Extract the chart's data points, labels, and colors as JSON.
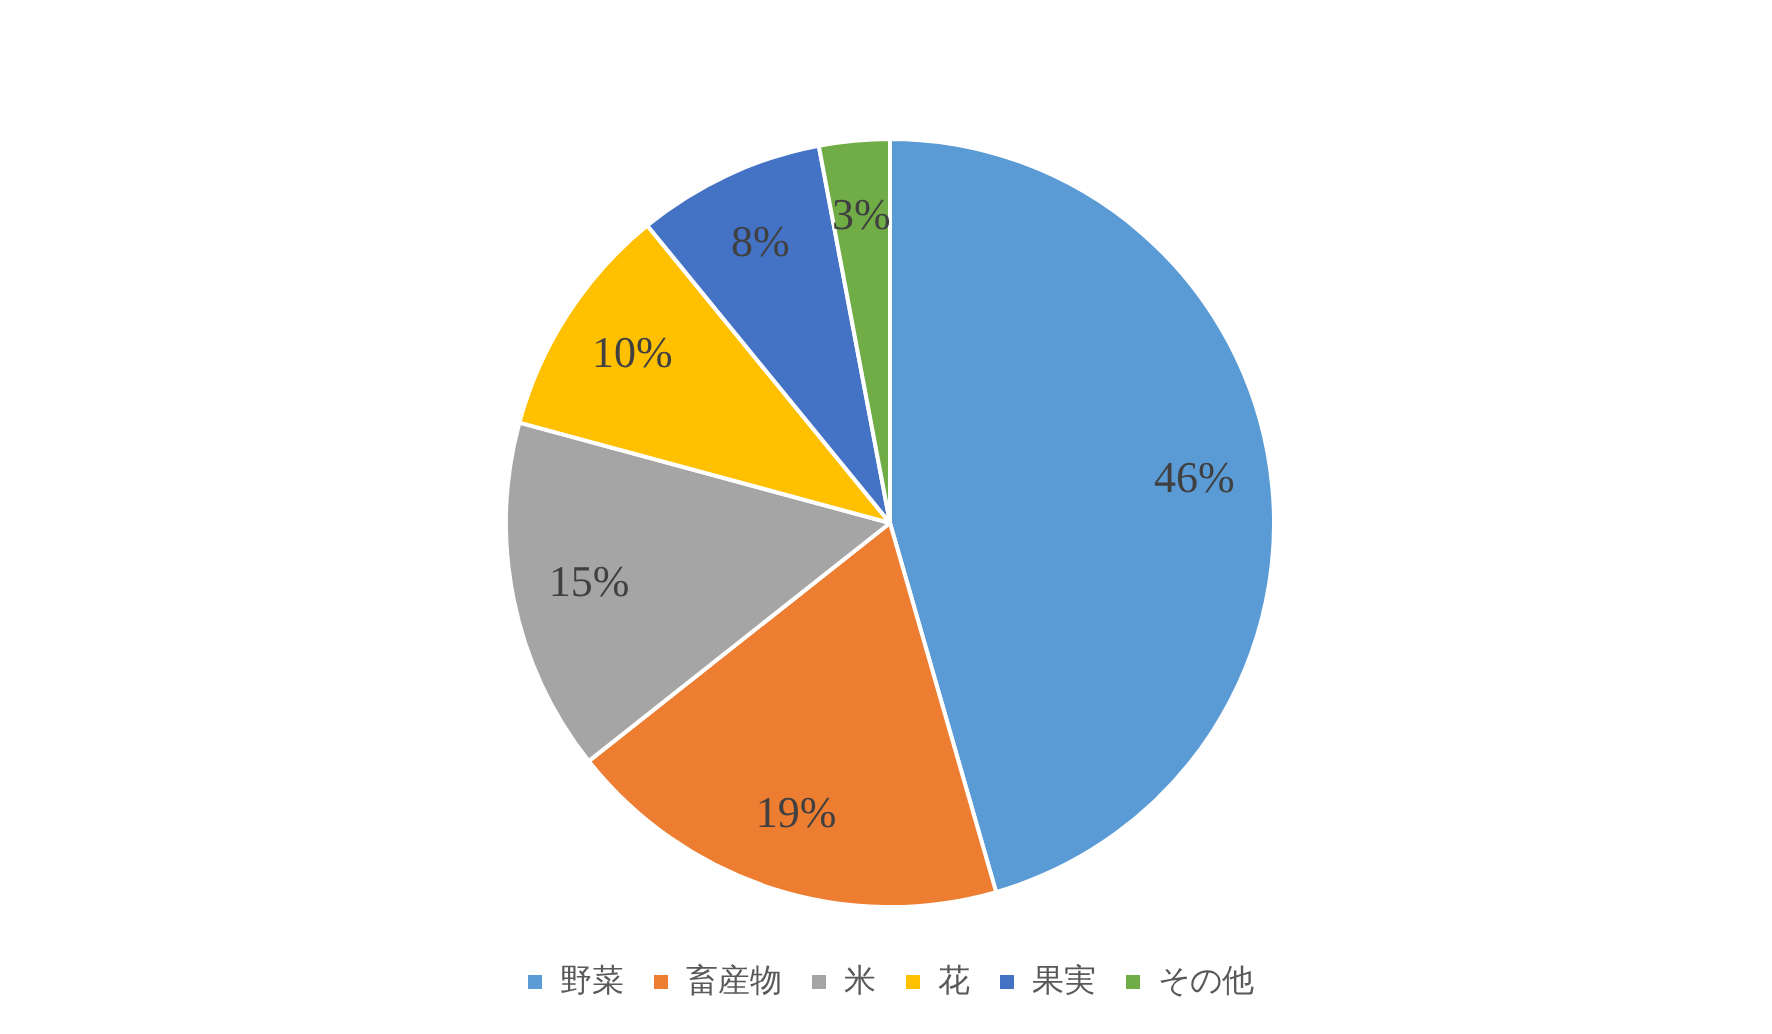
{
  "chart_data": {
    "type": "pie",
    "categories": [
      "野菜",
      "畜産物",
      "米",
      "花",
      "果実",
      "その他"
    ],
    "values": [
      46,
      19,
      15,
      10,
      8,
      3
    ],
    "colors": [
      "#5b9bd5",
      "#ed7d31",
      "#a5a5a5",
      "#ffc000",
      "#4472c4",
      "#70ad47"
    ],
    "value_labels": [
      "46%",
      "19%",
      "15%",
      "10%",
      "8%",
      "3%"
    ],
    "legend": "bottom"
  }
}
